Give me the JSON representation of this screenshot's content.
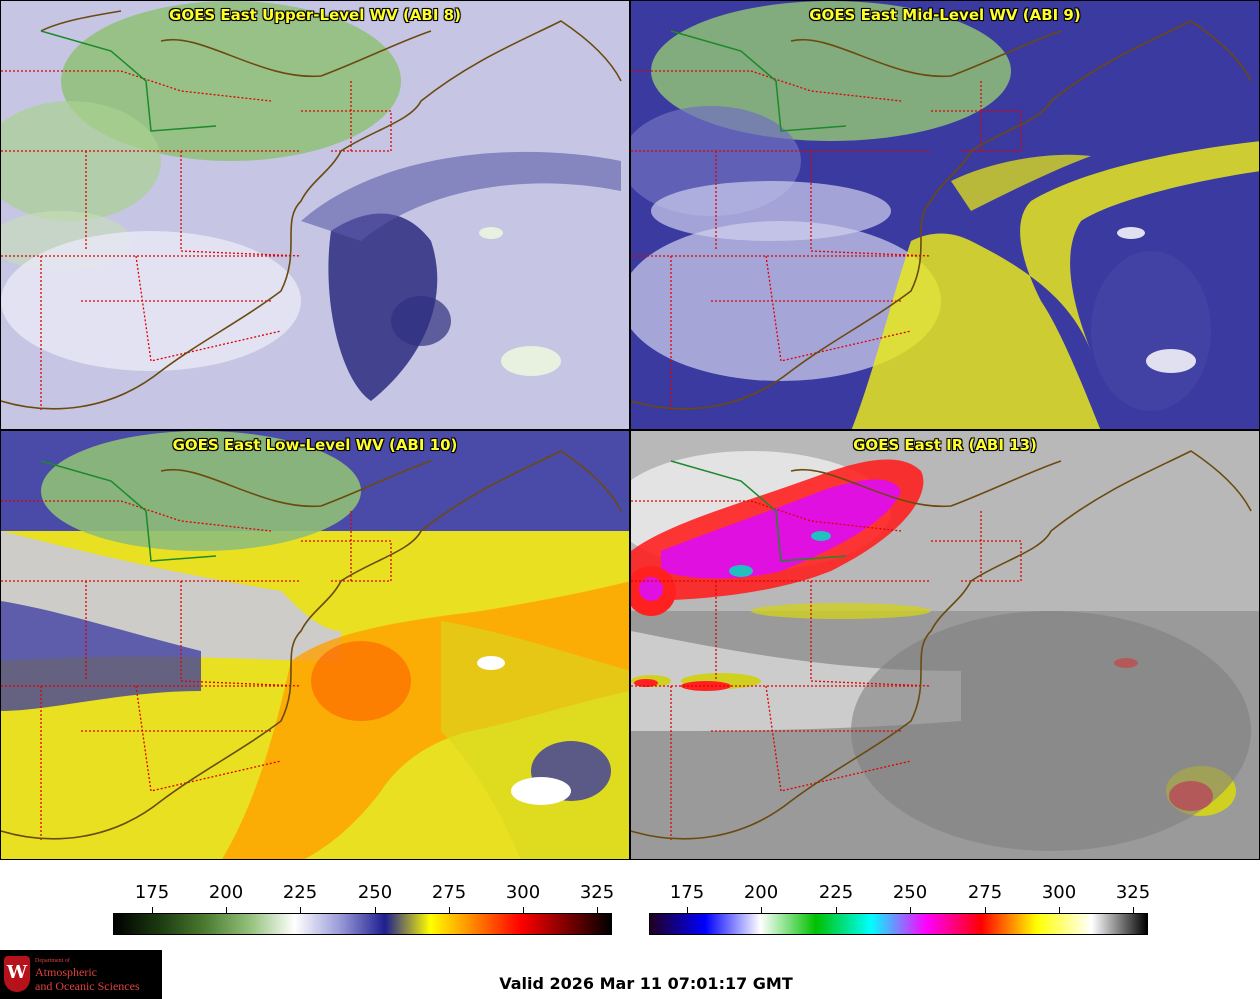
{
  "panels": [
    {
      "title": "GOES East Upper-Level WV (ABI 8)",
      "scheme": "wv_upper"
    },
    {
      "title": "GOES East Mid-Level WV (ABI 9)",
      "scheme": "wv_mid"
    },
    {
      "title": "GOES East Low-Level WV (ABI 10)",
      "scheme": "wv_low"
    },
    {
      "title": "GOES East IR (ABI 13)",
      "scheme": "ir"
    }
  ],
  "colorbars": [
    {
      "name": "water-vapor-colorbar",
      "ticks": [
        "175",
        "200",
        "225",
        "250",
        "275",
        "300",
        "325"
      ],
      "stops": [
        "#000000",
        "#1b3a10",
        "#4a7a30",
        "#93c07a",
        "#ffffff",
        "#9a9ad8",
        "#1e1e90",
        "#ffff00",
        "#ff8000",
        "#ff0000",
        "#800000",
        "#000000"
      ]
    },
    {
      "name": "ir-colorbar",
      "ticks": [
        "175",
        "200",
        "225",
        "250",
        "275",
        "300",
        "325"
      ],
      "stops": [
        "#200020",
        "#0000ff",
        "#ffffff",
        "#00c000",
        "#00ffff",
        "#ff00ff",
        "#ff0000",
        "#ffff00",
        "#ffffff",
        "#000000"
      ]
    }
  ],
  "logo": {
    "crest_letter": "W",
    "dept": "Department of",
    "line1": "Atmospheric",
    "line2": "and Oceanic Sciences"
  },
  "valid_time": "Valid 2026 Mar 11 07:01:17 GMT",
  "colors": {
    "title_text": "#ffff2a",
    "state_borders": "#e00000",
    "coastlines": "#6b4a10",
    "border_line": "#1a8a2a"
  }
}
